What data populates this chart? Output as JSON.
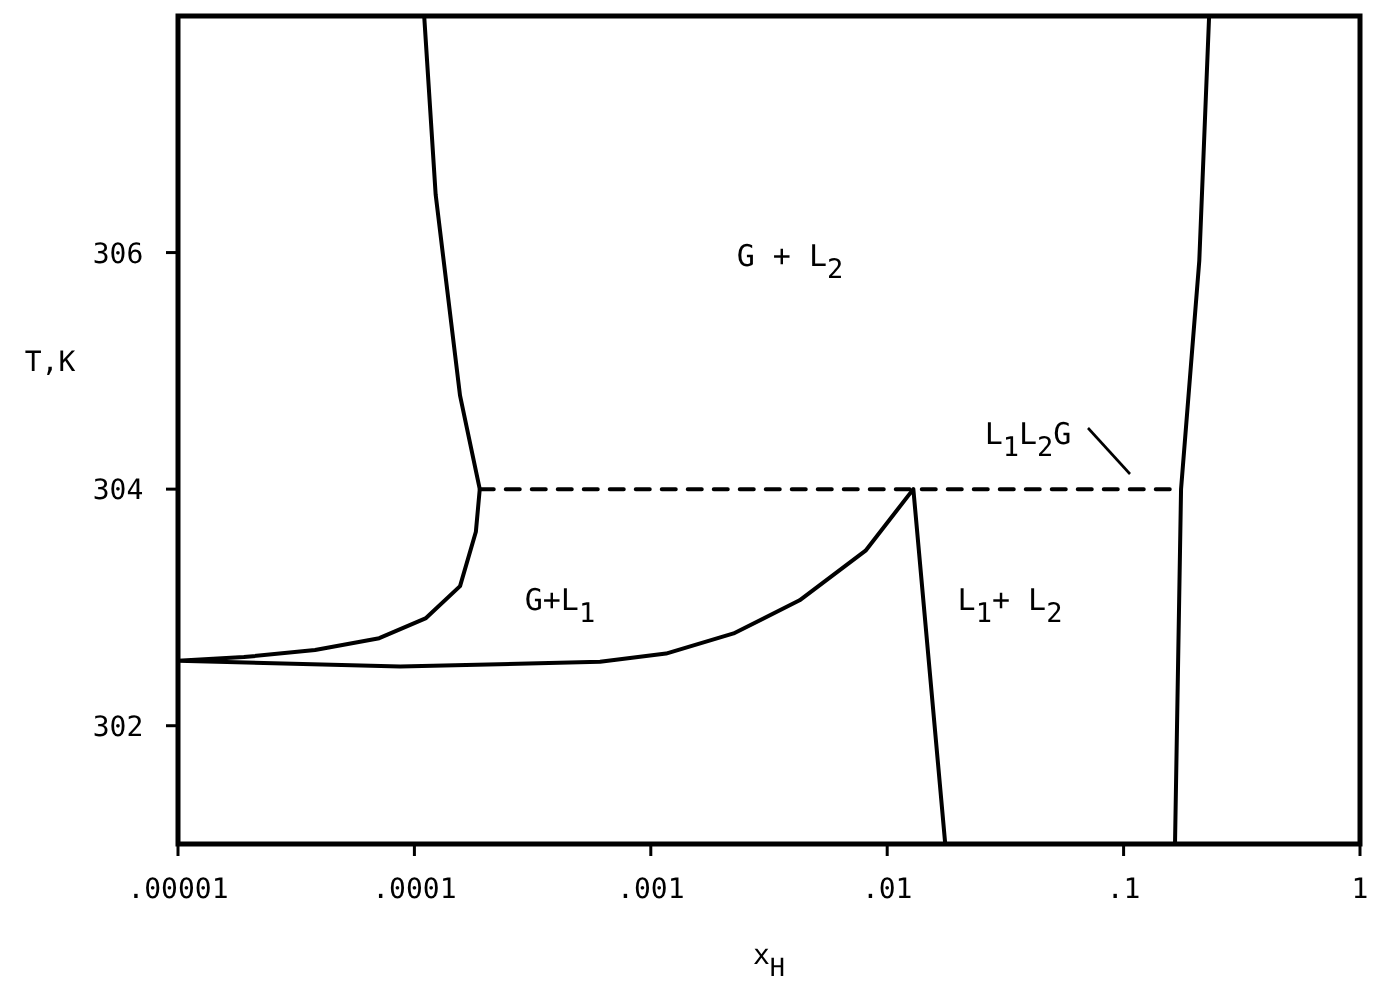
{
  "chart_data": {
    "type": "line",
    "xlabel": "x$_{H}$",
    "ylabel": "T,K",
    "log": "x",
    "xlim": [
      1e-05,
      1
    ],
    "xticks": [
      {
        "value": 1e-05,
        "label": ".00001"
      },
      {
        "value": 0.0001,
        "label": ".0001"
      },
      {
        "value": 0.001,
        "label": ".001"
      },
      {
        "value": 0.01,
        "label": ".01"
      },
      {
        "value": 0.1,
        "label": ".1"
      },
      1
    ],
    "ylim": [
      301,
      308
    ],
    "yticks": [
      302,
      304,
      306
    ],
    "marker": "none",
    "series": [
      {
        "color": "#000000",
        "x": [
          0.00011,
          0.000123,
          0.000156,
          0.000189,
          0.000182,
          0.000156,
          0.000112,
          7.1e-05,
          3.8e-05,
          1.9e-05,
          1e-05,
          8.7e-05,
          0.00061,
          0.00116,
          0.00224,
          0.00426,
          0.0081,
          0.0129,
          0.0176
        ],
        "values": [
          308,
          306.49,
          304.79,
          304,
          303.64,
          303.18,
          302.91,
          302.74,
          302.64,
          302.58,
          302.55,
          302.5,
          302.54,
          302.61,
          302.78,
          303.06,
          303.48,
          304,
          301
        ]
      },
      {
        "color": "#000000",
        "x": [
          0.165,
          0.175,
          0.209,
          0.23
        ],
        "values": [
          301,
          304,
          305.93,
          308
        ]
      },
      {
        "color": "#000000",
        "x": [
          0.000189,
          0.175
        ],
        "values": [
          304,
          304
        ],
        "line_style": "dashed"
      }
    ],
    "annotations": [
      "G + L$_{2}$",
      "G+L$_{1}$",
      "L$_{1}$+ L$_{2}$",
      "L$_{1}$L$_{2}$G"
    ]
  }
}
